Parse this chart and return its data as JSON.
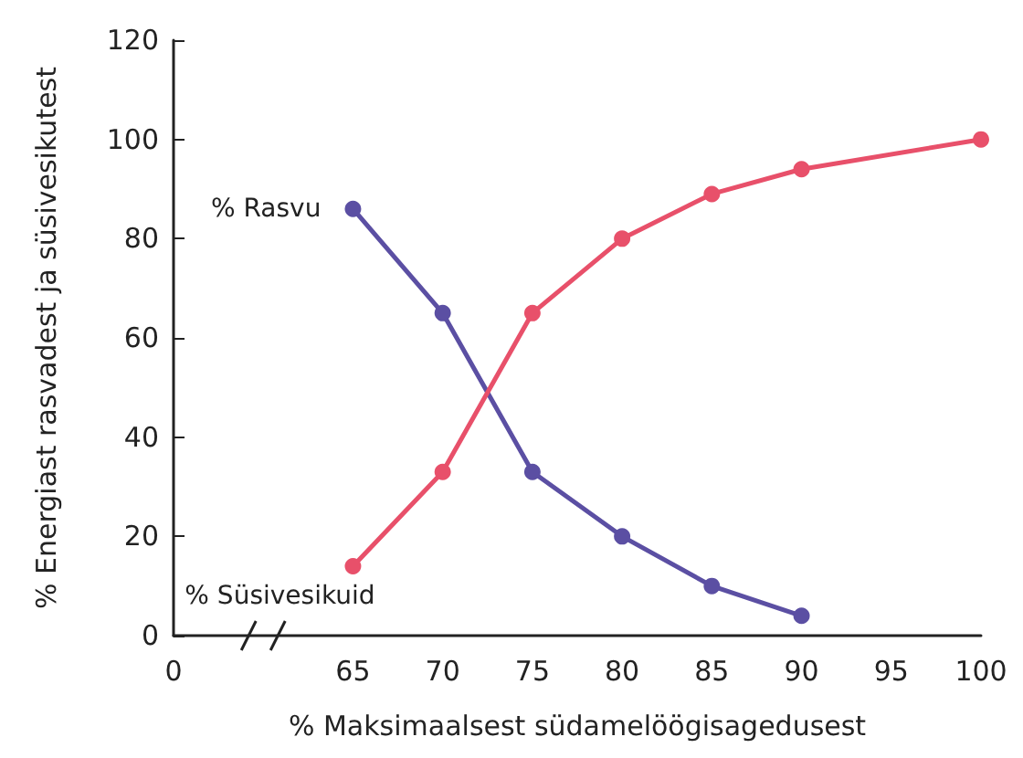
{
  "chart_data": {
    "type": "line",
    "xlabel": "% Maksimaalsest südamelöögisagedusest",
    "ylabel": "% Energiast rasvadest ja süsivesikutest",
    "categories": [
      "0",
      null,
      "65",
      "70",
      "75",
      "80",
      "85",
      "90",
      "95",
      "100"
    ],
    "series": [
      {
        "name": "% Rasvu",
        "color": "#5b4fa3",
        "values": [
          null,
          null,
          86,
          65,
          33,
          20,
          10,
          4,
          null,
          null
        ]
      },
      {
        "name": "% Süsivesikuid",
        "color": "#e8506a",
        "values": [
          null,
          null,
          14,
          33,
          65,
          80,
          89,
          94,
          null,
          100
        ]
      }
    ],
    "ylim": [
      0,
      120
    ],
    "yticks": [
      0,
      20,
      40,
      60,
      80,
      100,
      120
    ],
    "grid": false,
    "legend": false,
    "marker": "circle",
    "line_style": "solid"
  }
}
